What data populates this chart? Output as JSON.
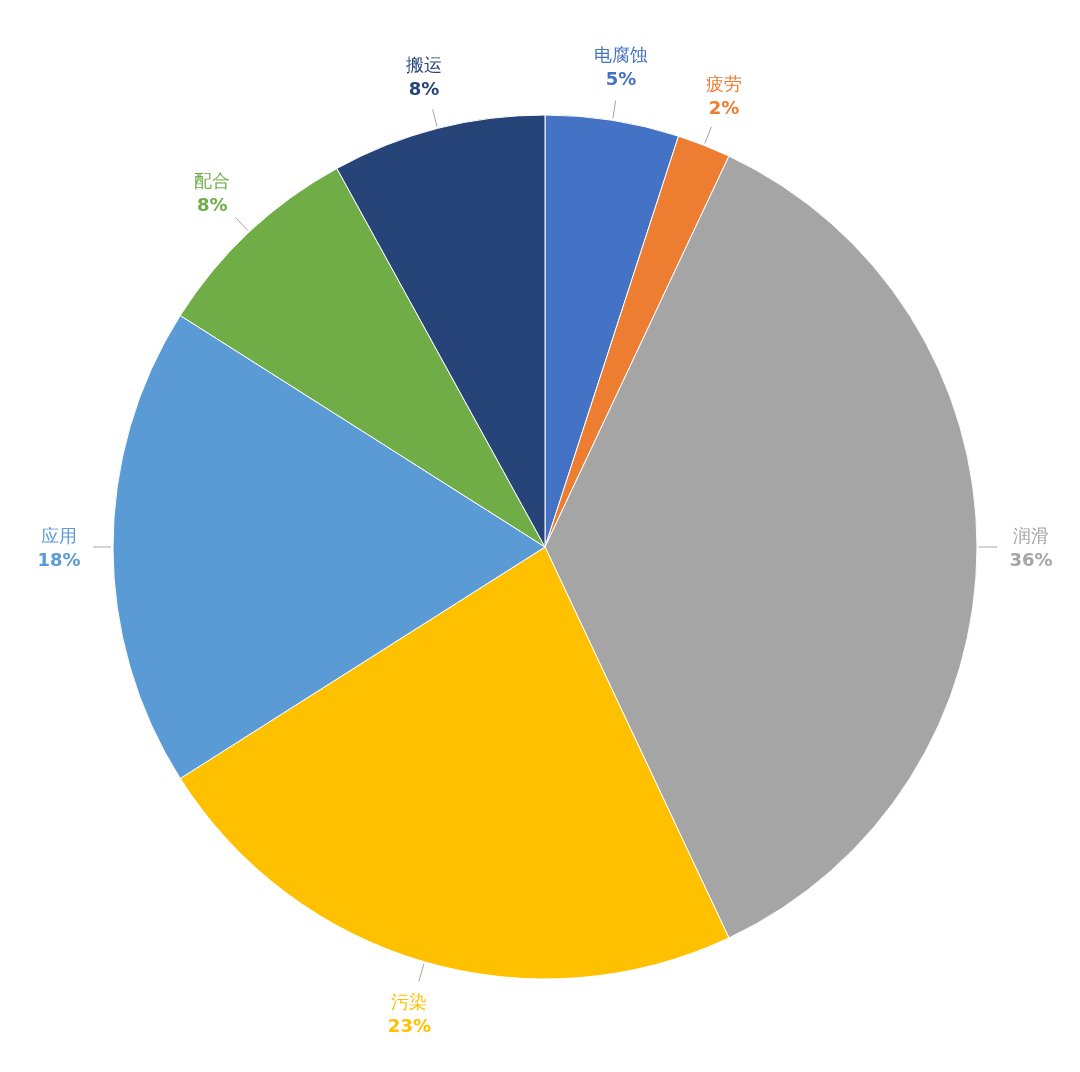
{
  "chart_data": {
    "type": "pie",
    "categories": [
      "电腐蚀",
      "疲劳",
      "润滑",
      "污染",
      "应用",
      "配合",
      "搬运"
    ],
    "values": [
      5,
      2,
      36,
      23,
      18,
      8,
      8
    ],
    "value_labels": [
      "5%",
      "2%",
      "36%",
      "23%",
      "18%",
      "8%",
      "8%"
    ],
    "colors": [
      "#4472c4",
      "#ed7d31",
      "#a5a5a5",
      "#ffc000",
      "#5b9bd5",
      "#70ad47",
      "#264478"
    ]
  }
}
